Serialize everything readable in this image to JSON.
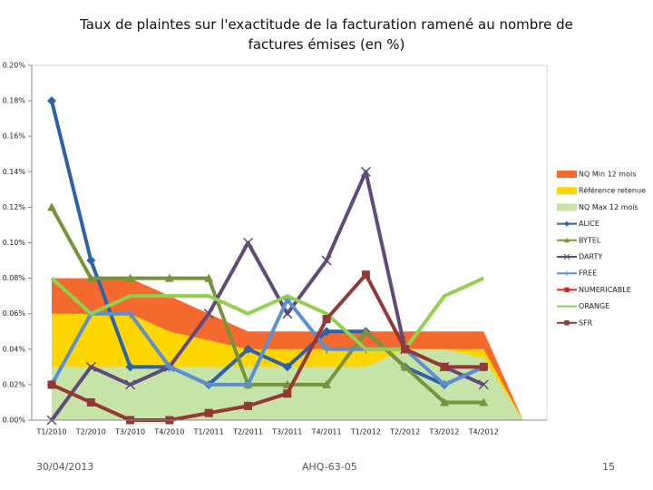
{
  "chart_data": {
    "type": "line",
    "title": "Taux de plaintes sur l'exactitude de la facturation ramené au nombre de factures émises (en %)",
    "categories": [
      "T1/2010",
      "T2/2010",
      "T3/2010",
      "T4/2010",
      "T1/2011",
      "T2/2011",
      "T3/2011",
      "T4/2011",
      "T1/2012",
      "T2/2012",
      "T3/2012",
      "T4/2012",
      null
    ],
    "ylim": [
      0,
      0.2
    ],
    "yticks": [
      {
        "value": 0,
        "label": "0.00%"
      },
      {
        "value": 0.02,
        "label": "0.02%"
      },
      {
        "value": 0.04,
        "label": "0.04%"
      },
      {
        "value": 0.06,
        "label": "0.06%"
      },
      {
        "value": 0.08,
        "label": "0.08%"
      },
      {
        "value": 0.1,
        "label": "0.10%"
      },
      {
        "value": 0.12,
        "label": "0.12%"
      },
      {
        "value": 0.14,
        "label": "0.14%"
      },
      {
        "value": 0.16,
        "label": "0.16%"
      },
      {
        "value": 0.18,
        "label": "0.18%"
      },
      {
        "value": 0.2,
        "label": "0.20%"
      }
    ],
    "series": [
      {
        "name": "NQ Min 12 mois",
        "kind": "area",
        "color": "#f46a2e",
        "values": [
          0.08,
          0.08,
          0.08,
          0.07,
          0.06,
          0.05,
          0.05,
          0.05,
          0.05,
          0.05,
          0.05,
          0.05,
          0
        ]
      },
      {
        "name": "Référence retenue",
        "kind": "area",
        "color": "#ffd700",
        "values": [
          0.06,
          0.06,
          0.06,
          0.05,
          0.045,
          0.04,
          0.04,
          0.04,
          0.04,
          0.04,
          0.04,
          0.04,
          0
        ]
      },
      {
        "name": "NQ Max 12 mois",
        "kind": "area",
        "color": "#c6e3a8",
        "values": [
          0.03,
          0.03,
          0.03,
          0.03,
          0.03,
          0.03,
          0.03,
          0.03,
          0.03,
          0.04,
          0.04,
          0.035,
          0
        ]
      },
      {
        "name": "ALICE",
        "kind": "line",
        "marker": "diamond",
        "color": "#2e62a8",
        "values": [
          0.18,
          0.09,
          0.03,
          0.03,
          0.02,
          0.04,
          0.03,
          0.05,
          0.05,
          0.03,
          0.02,
          0.03,
          null
        ]
      },
      {
        "name": "BYTEL",
        "kind": "line",
        "marker": "triangle",
        "color": "#77933c",
        "values": [
          0.12,
          0.08,
          0.08,
          0.08,
          0.08,
          0.02,
          0.02,
          0.02,
          0.05,
          0.03,
          0.01,
          0.01,
          null
        ]
      },
      {
        "name": "DARTY",
        "kind": "line",
        "marker": "cross",
        "color": "#604a7b",
        "values": [
          0,
          0.03,
          0.02,
          0.03,
          0.06,
          0.1,
          0.06,
          0.09,
          0.14,
          0.04,
          0.03,
          0.02,
          null
        ]
      },
      {
        "name": "FREE",
        "kind": "line",
        "marker": "plus",
        "color": "#5b8fd0",
        "values": [
          0.02,
          0.06,
          0.06,
          0.03,
          0.02,
          0.02,
          0.068,
          0.04,
          0.04,
          0.04,
          0.02,
          0.03,
          null
        ]
      },
      {
        "name": "NUMERICABLE",
        "kind": "line",
        "marker": "square",
        "color": "#e02020",
        "values": [
          null,
          null,
          null,
          null,
          null,
          null,
          null,
          null,
          null,
          null,
          null,
          null,
          null
        ]
      },
      {
        "name": "ORANGE",
        "kind": "line",
        "marker": "none",
        "color": "#92d050",
        "values": [
          0.08,
          0.06,
          0.07,
          0.07,
          0.07,
          0.06,
          0.07,
          0.06,
          0.04,
          0.04,
          0.07,
          0.08,
          null
        ]
      },
      {
        "name": "SFR",
        "kind": "line",
        "marker": "square",
        "color": "#953735",
        "values": [
          0.02,
          0.01,
          0,
          0,
          0.004,
          0.008,
          0.015,
          0.057,
          0.082,
          0.04,
          0.03,
          0.03,
          null
        ]
      }
    ]
  },
  "footer": {
    "date": "30/04/2013",
    "reference": "AHQ-63-05",
    "page": "15"
  }
}
